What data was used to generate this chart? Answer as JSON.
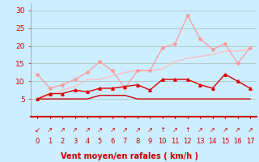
{
  "x": [
    0,
    1,
    2,
    3,
    4,
    5,
    6,
    7,
    8,
    9,
    10,
    11,
    12,
    13,
    14,
    15,
    16,
    17
  ],
  "line1_y": [
    12.0,
    8.0,
    9.0,
    10.5,
    12.5,
    15.5,
    13.0,
    8.0,
    13.0,
    13.0,
    19.5,
    20.5,
    28.5,
    22.0,
    19.0,
    20.5,
    15.0,
    19.5
  ],
  "line2_y": [
    5.0,
    6.0,
    7.5,
    8.5,
    10.5,
    10.5,
    11.5,
    12.5,
    13.0,
    13.0,
    13.5,
    15.5,
    16.5,
    17.0,
    17.5,
    18.5,
    18.5,
    19.0
  ],
  "line3_y": [
    5.0,
    6.5,
    6.5,
    7.5,
    7.0,
    8.0,
    8.0,
    8.5,
    9.0,
    7.5,
    10.5,
    10.5,
    10.5,
    9.0,
    8.0,
    12.0,
    10.0,
    8.0
  ],
  "line4_y": [
    5.0,
    5.0,
    5.0,
    5.0,
    5.0,
    6.0,
    6.0,
    6.0,
    5.0,
    5.0,
    5.0,
    5.0,
    5.0,
    5.0,
    5.0,
    5.0,
    5.0,
    5.0
  ],
  "line1_color": "#ff9999",
  "line2_color": "#ffbbbb",
  "line3_color": "#dd0000",
  "line4_color": "#cc0000",
  "xlabel": "Vent moyen/en rafales ( km/h )",
  "xlabel_color": "#cc0000",
  "bg_color": "#cceeff",
  "grid_color": "#aabbbb",
  "tick_color": "#cc0000",
  "ylim": [
    0,
    32
  ],
  "yticks": [
    5,
    10,
    15,
    20,
    25,
    30
  ],
  "xlim": [
    -0.5,
    17.5
  ],
  "arrow_labels": [
    "↙",
    "↗",
    "↗",
    "↗",
    "↗",
    "↗",
    "↗",
    "↗",
    "↗",
    "↗",
    "↑",
    "↗",
    "↑",
    "↗",
    "↗",
    "↗",
    "↗",
    "↗"
  ],
  "num_labels": [
    "0",
    "1",
    "2",
    "3",
    "4",
    "5",
    "6",
    "7",
    "8",
    "9",
    "10",
    "11",
    "12",
    "13",
    "14",
    "15",
    "16",
    "17"
  ]
}
